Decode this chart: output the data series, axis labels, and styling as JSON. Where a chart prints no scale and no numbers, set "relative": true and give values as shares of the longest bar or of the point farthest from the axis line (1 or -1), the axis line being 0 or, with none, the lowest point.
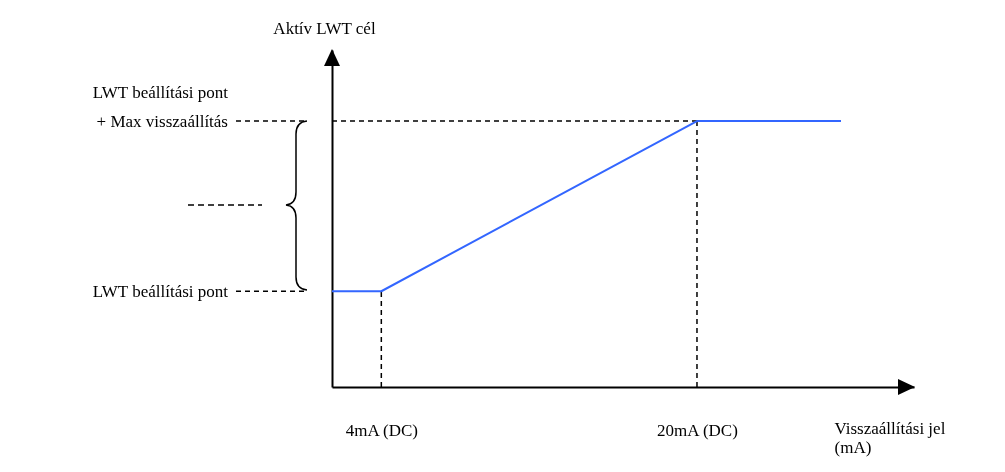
{
  "chart_data": {
    "type": "line",
    "relative": true,
    "xlabel": "Visszaállítási jel\n(mA)",
    "ylabel": "Aktív LWT cél",
    "x": [
      1.5,
      4,
      20,
      27.3
    ],
    "xlim": [
      1.5,
      31
    ],
    "xticks": [
      {
        "value": 4,
        "label": "4mA (DC)"
      },
      {
        "value": 20,
        "label": "20mA (DC)"
      }
    ],
    "series": [
      {
        "color": "#3366ff",
        "values": [
          0.36,
          0.36,
          1,
          1
        ]
      }
    ],
    "ref_lines": [
      {
        "axis": "y",
        "value": 0.36,
        "label": "LWT beállítási pont",
        "line_style": "dashed"
      },
      {
        "axis": "y",
        "value": 1,
        "label": "LWT beállítási pont\n+ Max visszaállítás",
        "line_style": "dashed"
      },
      {
        "axis": "x",
        "value": 4,
        "line_style": "dashed"
      },
      {
        "axis": "x",
        "value": 20,
        "line_style": "dashed"
      }
    ],
    "grid": false,
    "marker": "none",
    "line_style": "solid"
  }
}
